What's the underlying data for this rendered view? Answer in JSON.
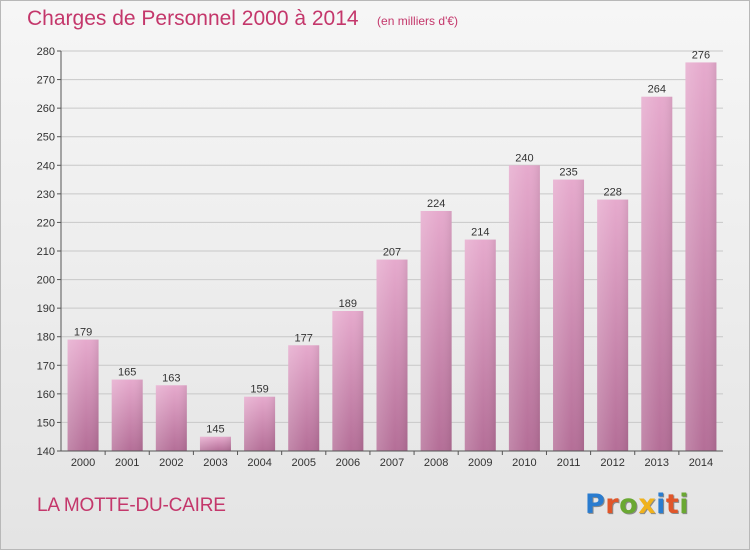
{
  "header": {
    "title": "Charges de Personnel 2000 à 2014",
    "subtitle": "(en milliers d'€)"
  },
  "footer": {
    "commune": "LA MOTTE-DU-CAIRE",
    "logo_text": "Proxiti",
    "logo_colors": [
      "#2a7ccf",
      "#e0562a",
      "#6aa832",
      "#f0b21d",
      "#2a7ccf",
      "#e0562a",
      "#6aa832"
    ]
  },
  "colors": {
    "bar_light": "#e6aacd",
    "bar_dark": "#b46e97",
    "axis": "#555555",
    "grid": "#c8c8c8"
  },
  "chart_data": {
    "type": "bar",
    "title": "Charges de Personnel 2000 à 2014",
    "subtitle": "(en milliers d'€)",
    "xlabel": "",
    "ylabel": "",
    "categories": [
      "2000",
      "2001",
      "2002",
      "2003",
      "2004",
      "2005",
      "2006",
      "2007",
      "2008",
      "2009",
      "2010",
      "2011",
      "2012",
      "2013",
      "2014"
    ],
    "values": [
      179,
      165,
      163,
      145,
      159,
      177,
      189,
      207,
      224,
      214,
      240,
      235,
      228,
      264,
      276
    ],
    "ylim": [
      140,
      280
    ],
    "yticks": [
      140,
      150,
      160,
      170,
      180,
      190,
      200,
      210,
      220,
      230,
      240,
      250,
      260,
      270,
      280
    ],
    "grid": true,
    "data_labels": true
  }
}
